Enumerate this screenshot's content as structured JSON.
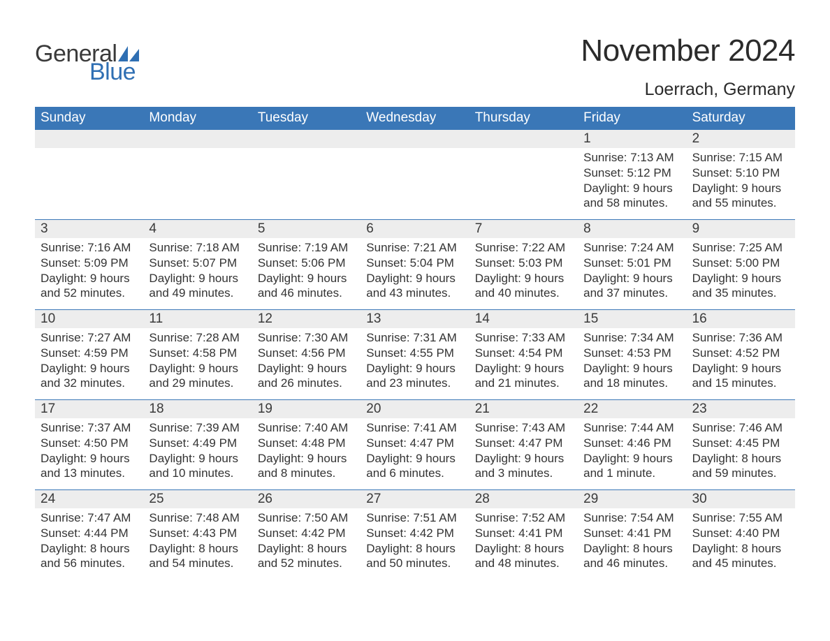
{
  "brand": {
    "word1": "General",
    "word2": "Blue",
    "word1_color": "#3a3a3a",
    "word2_color": "#2f6fb3",
    "sail_color": "#2f6fb3",
    "font_size_pt": 26
  },
  "title": {
    "month_year": "November 2024",
    "location": "Loerrach, Germany",
    "title_color": "#2b2b2b",
    "title_fontsize_pt": 33,
    "location_fontsize_pt": 19
  },
  "colors": {
    "header_bg": "#3a77b7",
    "header_text": "#ffffff",
    "daynum_bg": "#ededed",
    "week_divider": "#3a77b7",
    "body_text": "#333333",
    "page_bg": "#ffffff"
  },
  "layout": {
    "columns": 7,
    "rows": 5,
    "body_fontsize_pt": 13,
    "daynum_fontsize_pt": 14,
    "dow_fontsize_pt": 14
  },
  "days_of_week": [
    "Sunday",
    "Monday",
    "Tuesday",
    "Wednesday",
    "Thursday",
    "Friday",
    "Saturday"
  ],
  "weeks": [
    [
      {
        "num": "",
        "sunrise": "",
        "sunset": "",
        "daylight": ""
      },
      {
        "num": "",
        "sunrise": "",
        "sunset": "",
        "daylight": ""
      },
      {
        "num": "",
        "sunrise": "",
        "sunset": "",
        "daylight": ""
      },
      {
        "num": "",
        "sunrise": "",
        "sunset": "",
        "daylight": ""
      },
      {
        "num": "",
        "sunrise": "",
        "sunset": "",
        "daylight": ""
      },
      {
        "num": "1",
        "sunrise": "Sunrise: 7:13 AM",
        "sunset": "Sunset: 5:12 PM",
        "daylight": "Daylight: 9 hours and 58 minutes."
      },
      {
        "num": "2",
        "sunrise": "Sunrise: 7:15 AM",
        "sunset": "Sunset: 5:10 PM",
        "daylight": "Daylight: 9 hours and 55 minutes."
      }
    ],
    [
      {
        "num": "3",
        "sunrise": "Sunrise: 7:16 AM",
        "sunset": "Sunset: 5:09 PM",
        "daylight": "Daylight: 9 hours and 52 minutes."
      },
      {
        "num": "4",
        "sunrise": "Sunrise: 7:18 AM",
        "sunset": "Sunset: 5:07 PM",
        "daylight": "Daylight: 9 hours and 49 minutes."
      },
      {
        "num": "5",
        "sunrise": "Sunrise: 7:19 AM",
        "sunset": "Sunset: 5:06 PM",
        "daylight": "Daylight: 9 hours and 46 minutes."
      },
      {
        "num": "6",
        "sunrise": "Sunrise: 7:21 AM",
        "sunset": "Sunset: 5:04 PM",
        "daylight": "Daylight: 9 hours and 43 minutes."
      },
      {
        "num": "7",
        "sunrise": "Sunrise: 7:22 AM",
        "sunset": "Sunset: 5:03 PM",
        "daylight": "Daylight: 9 hours and 40 minutes."
      },
      {
        "num": "8",
        "sunrise": "Sunrise: 7:24 AM",
        "sunset": "Sunset: 5:01 PM",
        "daylight": "Daylight: 9 hours and 37 minutes."
      },
      {
        "num": "9",
        "sunrise": "Sunrise: 7:25 AM",
        "sunset": "Sunset: 5:00 PM",
        "daylight": "Daylight: 9 hours and 35 minutes."
      }
    ],
    [
      {
        "num": "10",
        "sunrise": "Sunrise: 7:27 AM",
        "sunset": "Sunset: 4:59 PM",
        "daylight": "Daylight: 9 hours and 32 minutes."
      },
      {
        "num": "11",
        "sunrise": "Sunrise: 7:28 AM",
        "sunset": "Sunset: 4:58 PM",
        "daylight": "Daylight: 9 hours and 29 minutes."
      },
      {
        "num": "12",
        "sunrise": "Sunrise: 7:30 AM",
        "sunset": "Sunset: 4:56 PM",
        "daylight": "Daylight: 9 hours and 26 minutes."
      },
      {
        "num": "13",
        "sunrise": "Sunrise: 7:31 AM",
        "sunset": "Sunset: 4:55 PM",
        "daylight": "Daylight: 9 hours and 23 minutes."
      },
      {
        "num": "14",
        "sunrise": "Sunrise: 7:33 AM",
        "sunset": "Sunset: 4:54 PM",
        "daylight": "Daylight: 9 hours and 21 minutes."
      },
      {
        "num": "15",
        "sunrise": "Sunrise: 7:34 AM",
        "sunset": "Sunset: 4:53 PM",
        "daylight": "Daylight: 9 hours and 18 minutes."
      },
      {
        "num": "16",
        "sunrise": "Sunrise: 7:36 AM",
        "sunset": "Sunset: 4:52 PM",
        "daylight": "Daylight: 9 hours and 15 minutes."
      }
    ],
    [
      {
        "num": "17",
        "sunrise": "Sunrise: 7:37 AM",
        "sunset": "Sunset: 4:50 PM",
        "daylight": "Daylight: 9 hours and 13 minutes."
      },
      {
        "num": "18",
        "sunrise": "Sunrise: 7:39 AM",
        "sunset": "Sunset: 4:49 PM",
        "daylight": "Daylight: 9 hours and 10 minutes."
      },
      {
        "num": "19",
        "sunrise": "Sunrise: 7:40 AM",
        "sunset": "Sunset: 4:48 PM",
        "daylight": "Daylight: 9 hours and 8 minutes."
      },
      {
        "num": "20",
        "sunrise": "Sunrise: 7:41 AM",
        "sunset": "Sunset: 4:47 PM",
        "daylight": "Daylight: 9 hours and 6 minutes."
      },
      {
        "num": "21",
        "sunrise": "Sunrise: 7:43 AM",
        "sunset": "Sunset: 4:47 PM",
        "daylight": "Daylight: 9 hours and 3 minutes."
      },
      {
        "num": "22",
        "sunrise": "Sunrise: 7:44 AM",
        "sunset": "Sunset: 4:46 PM",
        "daylight": "Daylight: 9 hours and 1 minute."
      },
      {
        "num": "23",
        "sunrise": "Sunrise: 7:46 AM",
        "sunset": "Sunset: 4:45 PM",
        "daylight": "Daylight: 8 hours and 59 minutes."
      }
    ],
    [
      {
        "num": "24",
        "sunrise": "Sunrise: 7:47 AM",
        "sunset": "Sunset: 4:44 PM",
        "daylight": "Daylight: 8 hours and 56 minutes."
      },
      {
        "num": "25",
        "sunrise": "Sunrise: 7:48 AM",
        "sunset": "Sunset: 4:43 PM",
        "daylight": "Daylight: 8 hours and 54 minutes."
      },
      {
        "num": "26",
        "sunrise": "Sunrise: 7:50 AM",
        "sunset": "Sunset: 4:42 PM",
        "daylight": "Daylight: 8 hours and 52 minutes."
      },
      {
        "num": "27",
        "sunrise": "Sunrise: 7:51 AM",
        "sunset": "Sunset: 4:42 PM",
        "daylight": "Daylight: 8 hours and 50 minutes."
      },
      {
        "num": "28",
        "sunrise": "Sunrise: 7:52 AM",
        "sunset": "Sunset: 4:41 PM",
        "daylight": "Daylight: 8 hours and 48 minutes."
      },
      {
        "num": "29",
        "sunrise": "Sunrise: 7:54 AM",
        "sunset": "Sunset: 4:41 PM",
        "daylight": "Daylight: 8 hours and 46 minutes."
      },
      {
        "num": "30",
        "sunrise": "Sunrise: 7:55 AM",
        "sunset": "Sunset: 4:40 PM",
        "daylight": "Daylight: 8 hours and 45 minutes."
      }
    ]
  ]
}
